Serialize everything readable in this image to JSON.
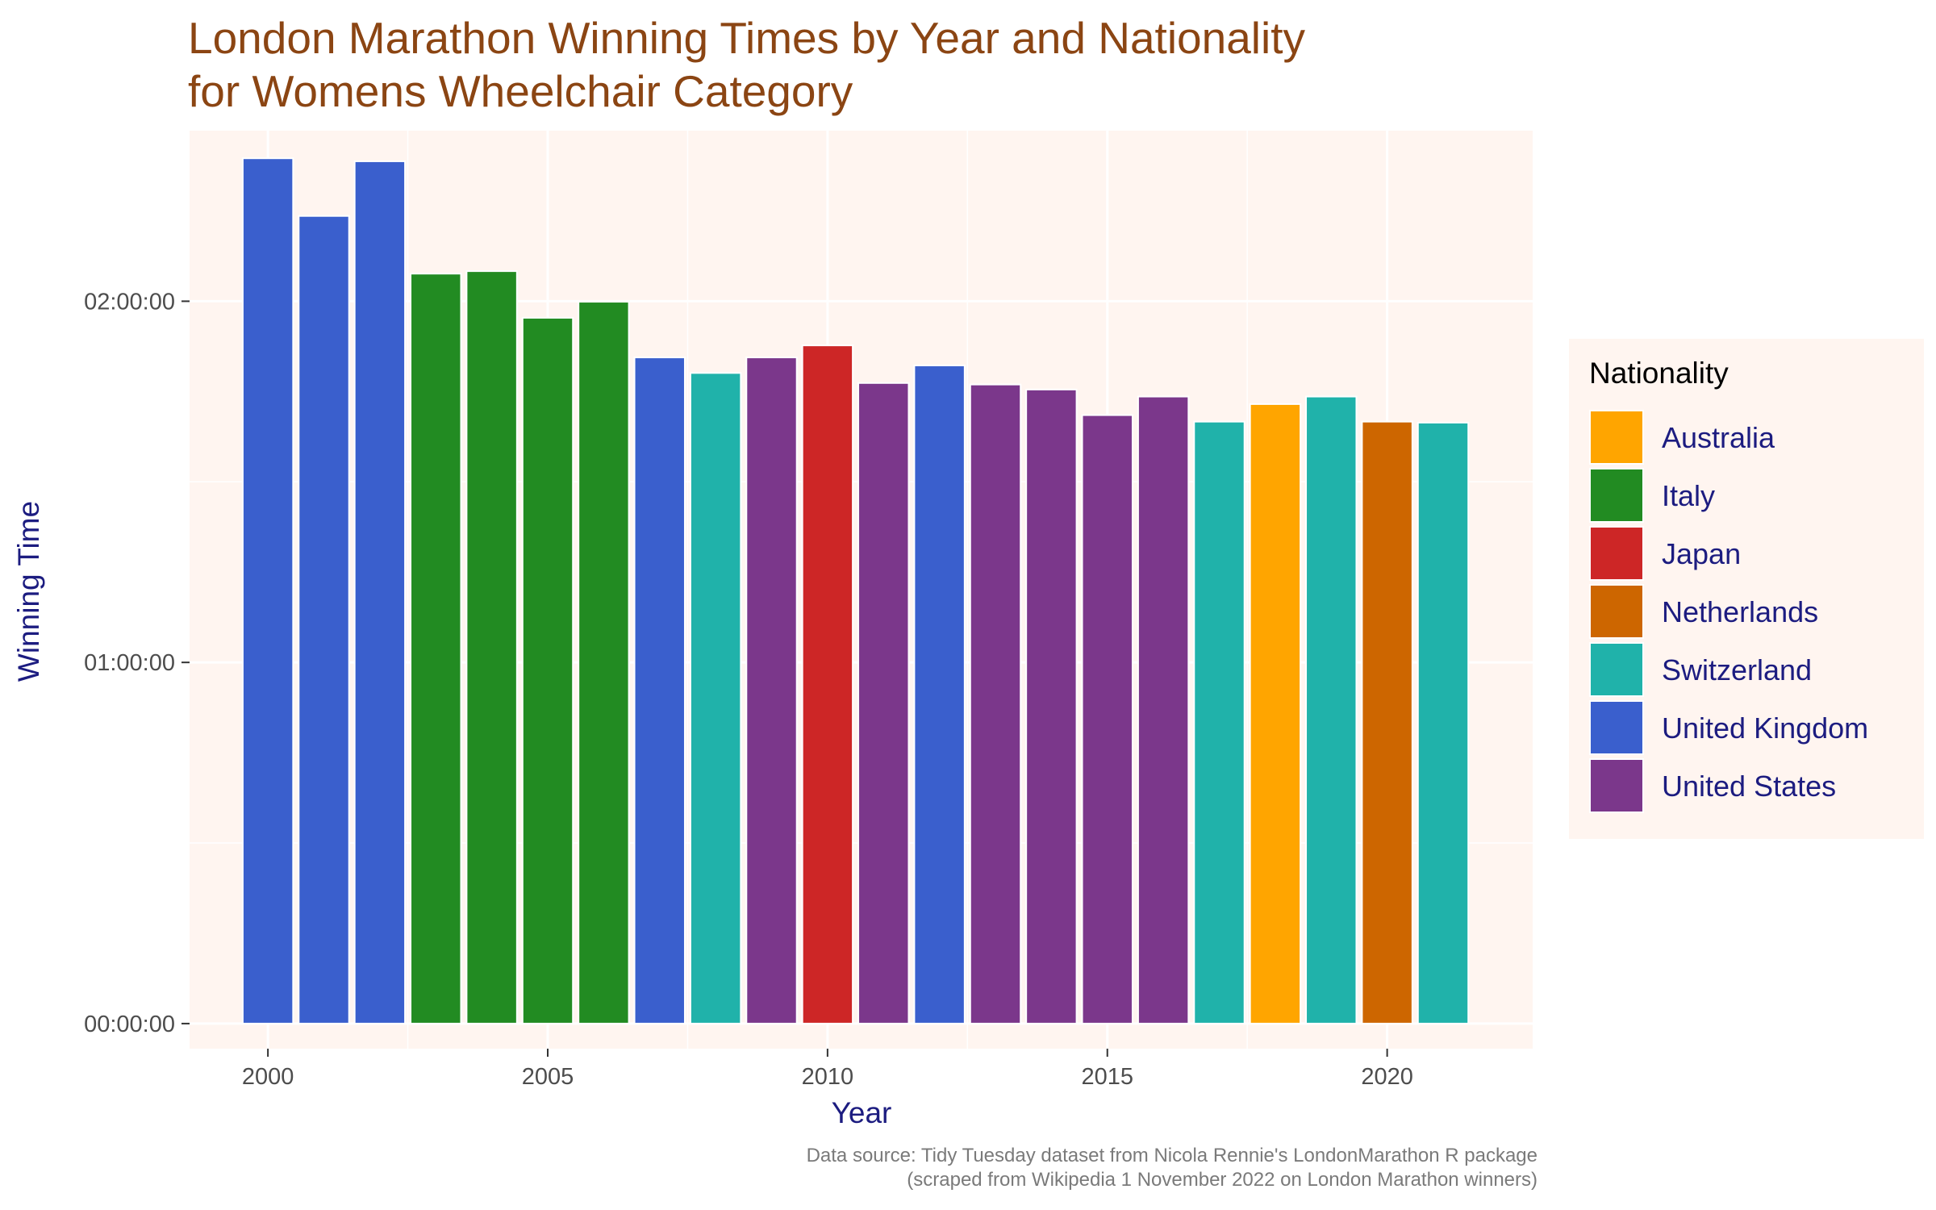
{
  "title_lines": [
    "London Marathon Winning Times by Year and Nationality",
    "for Womens Wheelchair Category"
  ],
  "caption_lines": [
    "Data source: Tidy Tuesday dataset from Nicola Rennie's LondonMarathon R package",
    "(scraped from Wikipedia 1 November 2022 on London Marathon winners)"
  ],
  "legend": {
    "title": "Nationality",
    "items": [
      {
        "label": "Australia",
        "color": "#FFA500"
      },
      {
        "label": "Italy",
        "color": "#228B22"
      },
      {
        "label": "Japan",
        "color": "#CD2626"
      },
      {
        "label": "Netherlands",
        "color": "#CD6600"
      },
      {
        "label": "Switzerland",
        "color": "#20B2AA"
      },
      {
        "label": "United Kingdom",
        "color": "#3A5FCD"
      },
      {
        "label": "United States",
        "color": "#7B378B"
      }
    ]
  },
  "colors": {
    "panel_bg": "#FFF5F0",
    "grid": "#FFFFFF",
    "title": "#8B4513",
    "axis_title": "#1c1c80",
    "tick_label": "#4d4d4d",
    "tick_mark": "#333333"
  },
  "chart_data": {
    "type": "bar",
    "title": "London Marathon Winning Times by Year and Nationality for Womens Wheelchair Category",
    "xlabel": "Year",
    "ylabel": "Winning Time",
    "x_ticks": [
      2000,
      2005,
      2010,
      2015,
      2020
    ],
    "y_ticks": [
      {
        "value": 0,
        "label": "00:00:00"
      },
      {
        "value": 3600,
        "label": "01:00:00"
      },
      {
        "value": 7200,
        "label": "02:00:00"
      }
    ],
    "xlim": [
      1998.6,
      2022.6
    ],
    "ylim": [
      -250,
      8900
    ],
    "grid": true,
    "legend_position": "right",
    "bars": [
      {
        "year": 2000,
        "seconds": 8625,
        "nationality": "United Kingdom"
      },
      {
        "year": 2001,
        "seconds": 8050,
        "nationality": "United Kingdom"
      },
      {
        "year": 2002,
        "seconds": 8595,
        "nationality": "United Kingdom"
      },
      {
        "year": 2003,
        "seconds": 7475,
        "nationality": "Italy"
      },
      {
        "year": 2004,
        "seconds": 7500,
        "nationality": "Italy"
      },
      {
        "year": 2005,
        "seconds": 7035,
        "nationality": "Italy"
      },
      {
        "year": 2006,
        "seconds": 7195,
        "nationality": "Italy"
      },
      {
        "year": 2007,
        "seconds": 6640,
        "nationality": "United Kingdom"
      },
      {
        "year": 2008,
        "seconds": 6485,
        "nationality": "Switzerland"
      },
      {
        "year": 2009,
        "seconds": 6640,
        "nationality": "United States"
      },
      {
        "year": 2010,
        "seconds": 6760,
        "nationality": "Japan"
      },
      {
        "year": 2011,
        "seconds": 6385,
        "nationality": "United States"
      },
      {
        "year": 2012,
        "seconds": 6560,
        "nationality": "United Kingdom"
      },
      {
        "year": 2013,
        "seconds": 6370,
        "nationality": "United States"
      },
      {
        "year": 2014,
        "seconds": 6320,
        "nationality": "United States"
      },
      {
        "year": 2015,
        "seconds": 6065,
        "nationality": "United States"
      },
      {
        "year": 2016,
        "seconds": 6250,
        "nationality": "United States"
      },
      {
        "year": 2017,
        "seconds": 6000,
        "nationality": "Switzerland"
      },
      {
        "year": 2018,
        "seconds": 6175,
        "nationality": "Australia"
      },
      {
        "year": 2019,
        "seconds": 6250,
        "nationality": "Switzerland"
      },
      {
        "year": 2020,
        "seconds": 6000,
        "nationality": "Netherlands"
      },
      {
        "year": 2021,
        "seconds": 5990,
        "nationality": "Switzerland"
      }
    ]
  }
}
